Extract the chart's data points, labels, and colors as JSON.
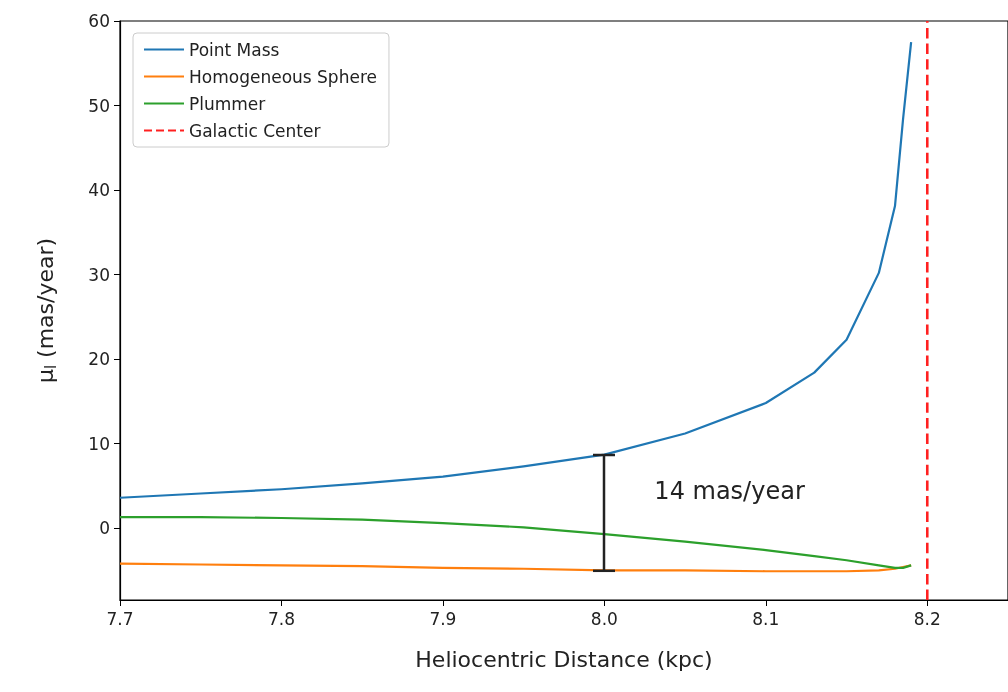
{
  "chart_data": {
    "type": "line",
    "xlabel": "Heliocentric Distance (kpc)",
    "ylabel": "μ$_{l}$ (mas/year)",
    "x": [
      7.7,
      7.75,
      7.8,
      7.85,
      7.9,
      7.95,
      8.0,
      8.05,
      8.1,
      8.13,
      8.15,
      8.17,
      8.18,
      8.185,
      8.19
    ],
    "series": [
      {
        "name": "Point Mass",
        "color": "#1f77b4",
        "values": [
          3.6,
          4.1,
          4.6,
          5.3,
          6.1,
          7.3,
          8.7,
          11.2,
          14.8,
          18.4,
          22.3,
          30.2,
          38.1,
          48.4,
          57.5
        ]
      },
      {
        "name": "Homogeneous Sphere",
        "color": "#ff7f0e",
        "values": [
          -4.2,
          -4.3,
          -4.4,
          -4.5,
          -4.7,
          -4.8,
          -5.0,
          -5.0,
          -5.1,
          -5.1,
          -5.1,
          -5.0,
          -4.8,
          -4.6,
          -4.4
        ]
      },
      {
        "name": "Plummer",
        "color": "#2ca02c",
        "values": [
          1.3,
          1.3,
          1.2,
          1.0,
          0.6,
          0.1,
          -0.7,
          -1.6,
          -2.6,
          -3.3,
          -3.8,
          -4.4,
          -4.7,
          -4.7,
          -4.4
        ]
      },
      {
        "name": "Galactic Center",
        "color": "#ff2020",
        "line_style": "dashed",
        "x": [
          8.2,
          8.2
        ],
        "values": [
          -8.5,
          60
        ]
      }
    ],
    "annotations": [
      {
        "text": "14 mas/year",
        "x": 8.0,
        "y": 8.7
      }
    ],
    "xlim": [
      7.7,
      8.25
    ],
    "xticks": [
      7.7,
      7.8,
      7.9,
      {
        "value": 8.0,
        "label": "8.0"
      },
      8.1,
      8.2
    ],
    "ylim": [
      -8.5,
      60
    ],
    "yticks": [
      0,
      10,
      20,
      30,
      40,
      50,
      60
    ],
    "grid": false,
    "legend": "top left",
    "marker": "none",
    "line_style": "solid"
  }
}
